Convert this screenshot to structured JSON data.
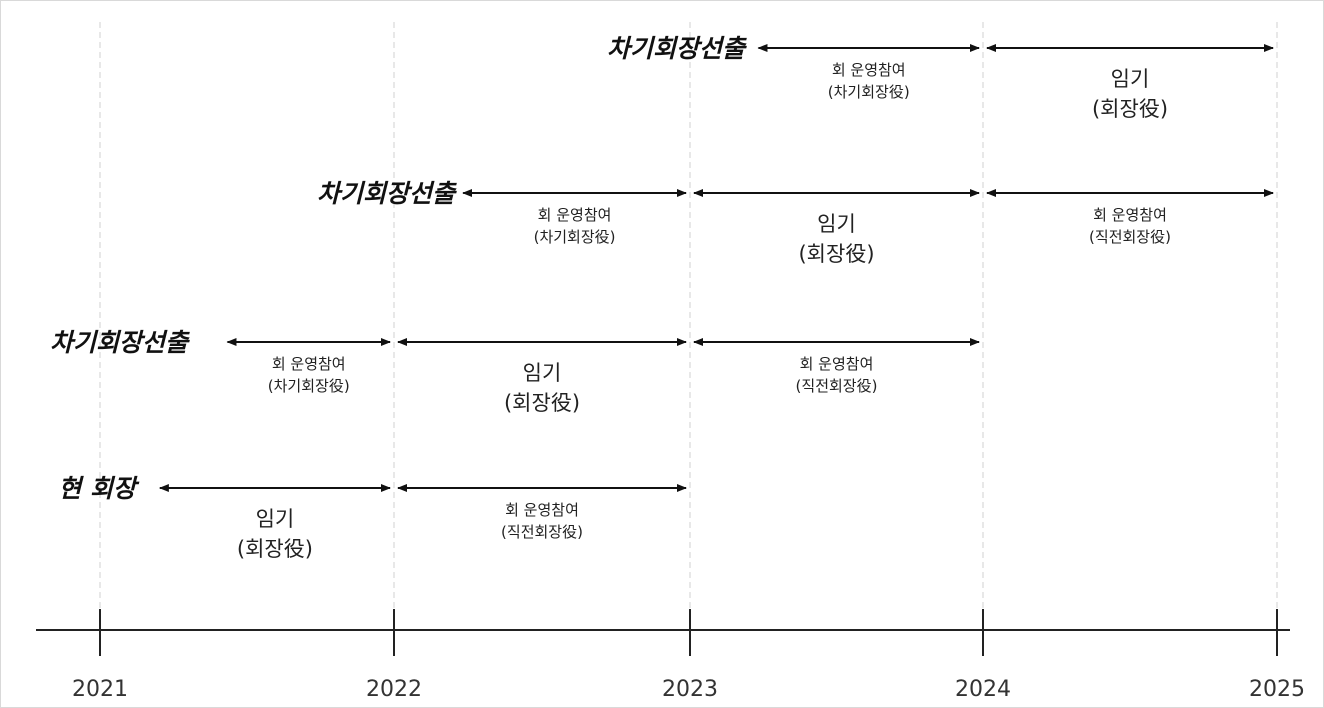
{
  "timeline": {
    "years": [
      "2021",
      "2022",
      "2023",
      "2024",
      "2025"
    ],
    "rows": [
      {
        "label": "차기회장선출",
        "segments": [
          {
            "from": 2023.22,
            "to": 2024,
            "lines": [
              "회 운영참여",
              "(차기회장役)"
            ],
            "size": "small"
          },
          {
            "from": 2024,
            "to": 2025,
            "lines": [
              "임기",
              "(회장役)"
            ],
            "size": "big"
          }
        ]
      },
      {
        "label": "차기회장선출",
        "segments": [
          {
            "from": 2022.22,
            "to": 2023,
            "lines": [
              "회 운영참여",
              "(차기회장役)"
            ],
            "size": "small"
          },
          {
            "from": 2023,
            "to": 2024,
            "lines": [
              "임기",
              "(회장役)"
            ],
            "size": "big"
          },
          {
            "from": 2024,
            "to": 2025,
            "lines": [
              "회 운영참여",
              "(직전회장役)"
            ],
            "size": "small"
          }
        ]
      },
      {
        "label": "차기회장선출",
        "segments": [
          {
            "from": 2021.42,
            "to": 2022,
            "lines": [
              "회 운영참여",
              "(차기회장役)"
            ],
            "size": "small"
          },
          {
            "from": 2022,
            "to": 2023,
            "lines": [
              "임기",
              "(회장役)"
            ],
            "size": "big"
          },
          {
            "from": 2023,
            "to": 2024,
            "lines": [
              "회 운영참여",
              "(직전회장役)"
            ],
            "size": "small"
          }
        ]
      },
      {
        "label": "현 회장",
        "segments": [
          {
            "from": 2021.19,
            "to": 2022,
            "lines": [
              "임기",
              "(회장役)"
            ],
            "size": "big"
          },
          {
            "from": 2022,
            "to": 2023,
            "lines": [
              "회 운영참여",
              "(직전회장役)"
            ],
            "size": "small"
          }
        ]
      }
    ]
  }
}
